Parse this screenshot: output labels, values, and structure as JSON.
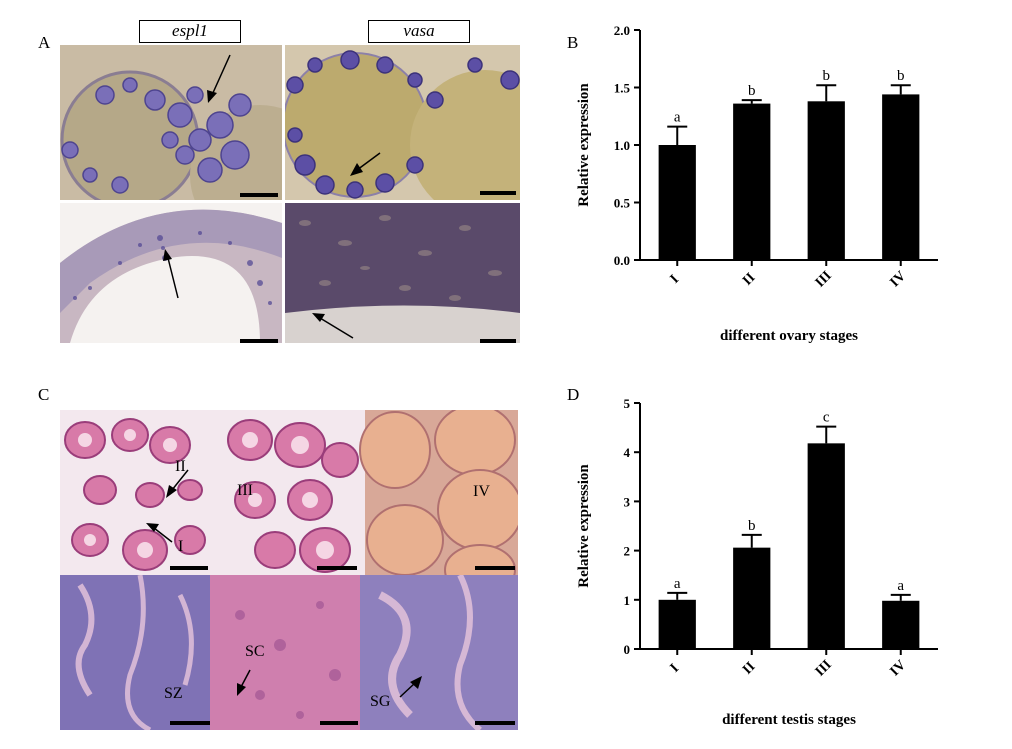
{
  "panels": {
    "A": {
      "letter": "A",
      "gene_labels": [
        "espl1",
        "vasa"
      ]
    },
    "B": {
      "letter": "B"
    },
    "C": {
      "letter": "C",
      "annotations": [
        "II",
        "I",
        "III",
        "IV",
        "SZ",
        "SC",
        "SG"
      ]
    },
    "D": {
      "letter": "D"
    }
  },
  "colors": {
    "bar": "#000000",
    "stain_purple": "#6a5aa8",
    "he_pink": "#d87aa8",
    "he_purple": "#7f72b5",
    "background": "#ffffff"
  },
  "chart_data": [
    {
      "type": "bar",
      "categories": [
        "I",
        "II",
        "III",
        "IV"
      ],
      "values": [
        1.0,
        1.36,
        1.38,
        1.44
      ],
      "errors": [
        0.16,
        0.03,
        0.14,
        0.08
      ],
      "significance": [
        "a",
        "b",
        "b",
        "b"
      ],
      "ylabel": "Relative expression",
      "xlabel": "different ovary stages",
      "ylim": [
        0.0,
        2.0
      ],
      "yticks": [
        "0.0",
        "0.5",
        "1.0",
        "1.5",
        "2.0"
      ],
      "grid": false
    },
    {
      "type": "bar",
      "categories": [
        "I",
        "II",
        "III",
        "IV"
      ],
      "values": [
        1.0,
        2.06,
        4.18,
        0.98
      ],
      "errors": [
        0.14,
        0.26,
        0.34,
        0.12
      ],
      "significance": [
        "a",
        "b",
        "c",
        "a"
      ],
      "ylabel": "Relative expression",
      "xlabel": "different testis stages",
      "ylim": [
        0,
        5
      ],
      "yticks": [
        "0",
        "1",
        "2",
        "3",
        "4",
        "5"
      ],
      "grid": false
    }
  ]
}
